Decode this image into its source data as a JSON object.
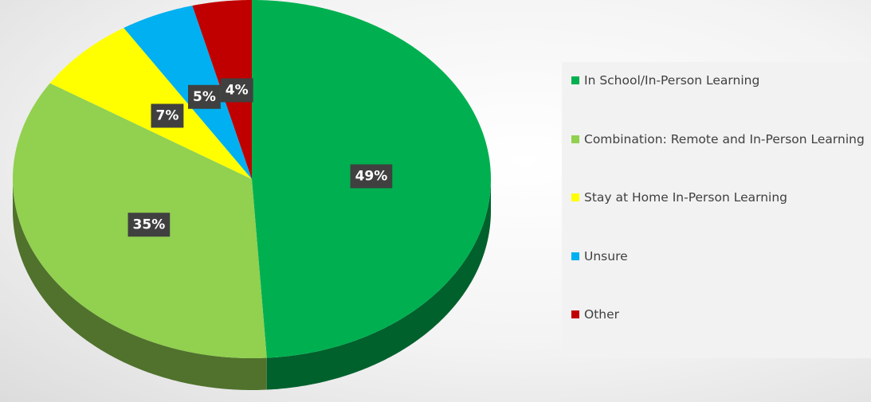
{
  "chart_data": {
    "type": "pie",
    "categories": [
      "In School/In-Person Learning",
      "Combination: Remote and In-Person Learning",
      "Stay at Home In-Person Learning",
      "Unsure",
      "Other"
    ],
    "values": [
      49,
      35,
      7,
      5,
      4
    ],
    "value_labels": [
      "49%",
      "35%",
      "7%",
      "5%",
      "4%"
    ],
    "colors": [
      "#00b050",
      "#92d050",
      "#ffff00",
      "#00b0f0",
      "#c00000"
    ],
    "legend": "right"
  }
}
